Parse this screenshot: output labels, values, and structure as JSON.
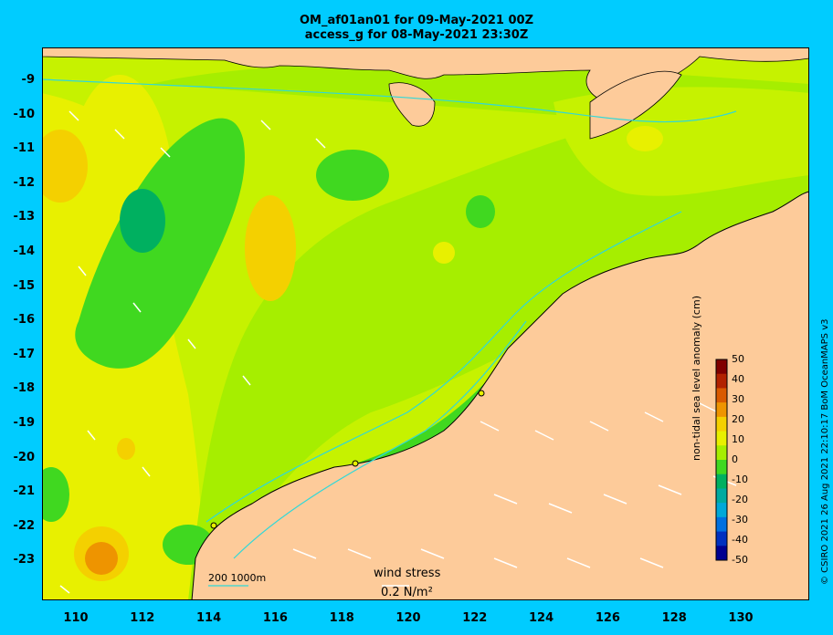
{
  "title_line1": "OM_af01an01 for 09-May-2021 00Z",
  "title_line2": "access_g for 08-May-2021 23:30Z",
  "lat_labels": [
    "-9",
    "-10",
    "-11",
    "-12",
    "-13",
    "-14",
    "-15",
    "-16",
    "-17",
    "-18",
    "-19",
    "-20",
    "-21",
    "-22",
    "-23"
  ],
  "lon_labels": [
    "110",
    "112",
    "114",
    "116",
    "118",
    "120",
    "122",
    "124",
    "126",
    "128",
    "130"
  ],
  "colorbar": {
    "title": "non-tidal sea level anomaly (cm)",
    "ticks": [
      "50",
      "40",
      "30",
      "20",
      "10",
      "0",
      "-10",
      "-20",
      "-30",
      "-40",
      "-50"
    ],
    "colors": [
      "#800000",
      "#b22200",
      "#d95a00",
      "#ee9400",
      "#f4d000",
      "#e8f000",
      "#a6ee00",
      "#40d820",
      "#00b060",
      "#00aaa0",
      "#00a8d8",
      "#0070e0",
      "#0030c0",
      "#000090"
    ]
  },
  "wind_stress_label": "wind stress",
  "wind_stress_value": "0.2 N/m²",
  "depth_scale_label": "200  1000m",
  "credit": "© CSIRO 2021  26 Aug 2021 22:10:17 BoM OceanMAPS v3",
  "colors": {
    "land": "#fdcb9a",
    "ocean_bg": "#c6f200",
    "frame": "#00ccff",
    "contour": "#30d8d8"
  }
}
